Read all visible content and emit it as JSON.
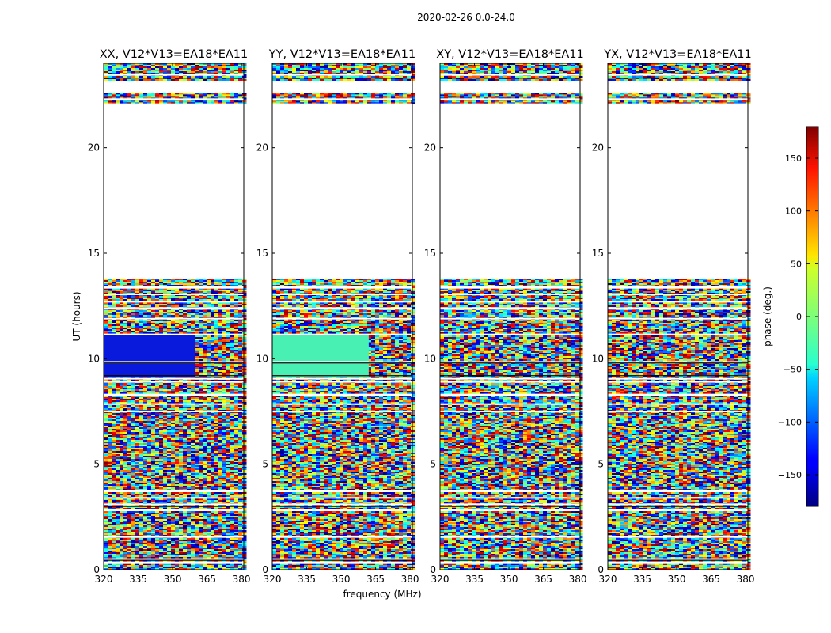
{
  "figure": {
    "suptitle": "2020-02-26 0.0-24.0",
    "ylabel": "UT (hours)",
    "xlabel": "frequency (MHz)"
  },
  "chart_data": {
    "type": "heatmap",
    "title": "2020-02-26 0.0-24.0",
    "xlabel": "frequency (MHz)",
    "ylabel": "UT (hours)",
    "xlim": [
      320,
      381
    ],
    "ylim": [
      0,
      24
    ],
    "x_ticks": [
      320,
      335,
      350,
      365,
      380
    ],
    "y_ticks": [
      0,
      5,
      10,
      15,
      20
    ],
    "panels": [
      {
        "name": "XX, V12*V13=EA18*EA11",
        "coherent_color": "#0a1adc",
        "coherent_hours": [
          9.1,
          11.1
        ],
        "coherent_edge_mhz": 360
      },
      {
        "name": "YY, V12*V13=EA18*EA11",
        "coherent_color": "#48f0b4",
        "coherent_hours": [
          9.1,
          11.1
        ],
        "coherent_edge_mhz": 362
      },
      {
        "name": "XY, V12*V13=EA18*EA11",
        "coherent_color": null,
        "coherent_hours": [],
        "coherent_edge_mhz": null
      },
      {
        "name": "YX, V12*V13=EA18*EA11",
        "coherent_color": null,
        "coherent_hours": [],
        "coherent_edge_mhz": null
      }
    ],
    "data_hours": [
      [
        0,
        13.8
      ],
      [
        22.1,
        22.6
      ],
      [
        23.2,
        24.0
      ]
    ],
    "gap_hours": [
      13.8,
      22.1
    ],
    "colorbar": {
      "label": "phase (deg.)",
      "range": [
        -180,
        180
      ],
      "ticks": [
        150,
        100,
        50,
        0,
        -50,
        -100,
        -150
      ],
      "tick_labels": [
        "150",
        "100",
        "50",
        "0",
        "−50",
        "−100",
        "−150"
      ],
      "colormap": "jet"
    },
    "grid": false
  }
}
